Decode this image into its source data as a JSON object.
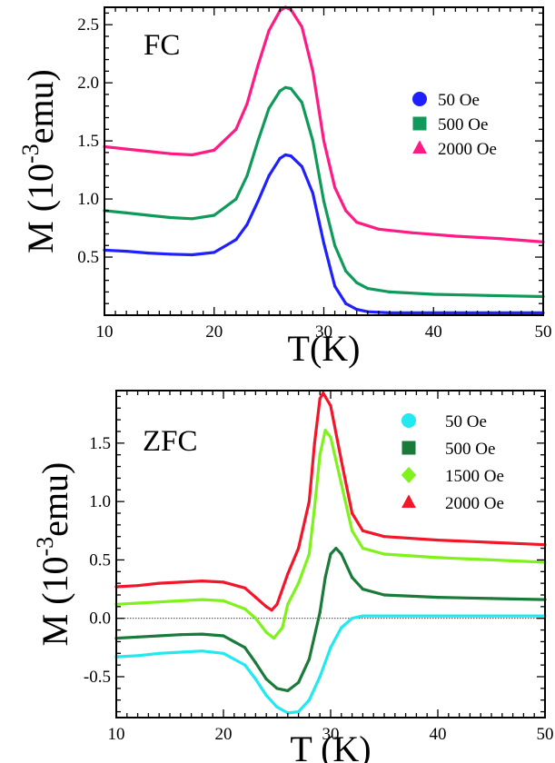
{
  "chart_data": [
    {
      "type": "line",
      "panel_label": "FC",
      "xlabel": "T(K)",
      "ylabel": "M (10",
      "ylabel_exp": "-3",
      "ylabel_unit": "emu)",
      "xlim": [
        10,
        50
      ],
      "ylim": [
        0,
        2.65
      ],
      "x_ticks": [
        10,
        20,
        30,
        40,
        50
      ],
      "x_tick_labels": [
        "10",
        "20",
        "30",
        "40",
        "50"
      ],
      "y_ticks": [
        0.5,
        1.0,
        1.5,
        2.0,
        2.5
      ],
      "y_tick_labels": [
        "0.5",
        "1.0",
        "1.5",
        "2.0",
        "2.5"
      ],
      "zero_line": false,
      "legend_position": "upper-right",
      "series": [
        {
          "name": "50 Oe",
          "color": "#1f1fff",
          "marker": "circle",
          "points": [
            [
              10,
              0.56
            ],
            [
              12,
              0.55
            ],
            [
              14,
              0.535
            ],
            [
              16,
              0.525
            ],
            [
              18,
              0.52
            ],
            [
              20,
              0.54
            ],
            [
              22,
              0.65
            ],
            [
              23,
              0.78
            ],
            [
              24,
              0.98
            ],
            [
              25,
              1.2
            ],
            [
              26,
              1.35
            ],
            [
              26.5,
              1.38
            ],
            [
              27,
              1.37
            ],
            [
              28,
              1.28
            ],
            [
              29,
              1.05
            ],
            [
              30,
              0.62
            ],
            [
              31,
              0.25
            ],
            [
              32,
              0.1
            ],
            [
              33,
              0.05
            ],
            [
              34,
              0.03
            ],
            [
              36,
              0.02
            ],
            [
              40,
              0.02
            ],
            [
              45,
              0.02
            ],
            [
              50,
              0.02
            ]
          ]
        },
        {
          "name": "500 Oe",
          "color": "#0f9a5a",
          "marker": "square",
          "points": [
            [
              10,
              0.9
            ],
            [
              12,
              0.88
            ],
            [
              14,
              0.86
            ],
            [
              16,
              0.84
            ],
            [
              18,
              0.83
            ],
            [
              20,
              0.86
            ],
            [
              22,
              1.0
            ],
            [
              23,
              1.2
            ],
            [
              24,
              1.5
            ],
            [
              25,
              1.78
            ],
            [
              26,
              1.93
            ],
            [
              26.5,
              1.96
            ],
            [
              27,
              1.95
            ],
            [
              28,
              1.83
            ],
            [
              29,
              1.5
            ],
            [
              30,
              0.98
            ],
            [
              31,
              0.6
            ],
            [
              32,
              0.38
            ],
            [
              33,
              0.28
            ],
            [
              34,
              0.23
            ],
            [
              36,
              0.2
            ],
            [
              40,
              0.18
            ],
            [
              45,
              0.17
            ],
            [
              50,
              0.16
            ]
          ]
        },
        {
          "name": "2000 Oe",
          "color": "#ff1a84",
          "marker": "triangle",
          "points": [
            [
              10,
              1.45
            ],
            [
              12,
              1.43
            ],
            [
              14,
              1.41
            ],
            [
              16,
              1.39
            ],
            [
              18,
              1.38
            ],
            [
              20,
              1.42
            ],
            [
              22,
              1.6
            ],
            [
              23,
              1.82
            ],
            [
              24,
              2.15
            ],
            [
              25,
              2.45
            ],
            [
              26,
              2.62
            ],
            [
              26.5,
              2.65
            ],
            [
              27,
              2.63
            ],
            [
              28,
              2.48
            ],
            [
              29,
              2.1
            ],
            [
              30,
              1.5
            ],
            [
              31,
              1.1
            ],
            [
              32,
              0.9
            ],
            [
              33,
              0.8
            ],
            [
              35,
              0.74
            ],
            [
              38,
              0.71
            ],
            [
              42,
              0.68
            ],
            [
              46,
              0.66
            ],
            [
              50,
              0.63
            ]
          ]
        }
      ]
    },
    {
      "type": "line",
      "panel_label": "ZFC",
      "xlabel": "T (K)",
      "ylabel": "M (10",
      "ylabel_exp": "-3",
      "ylabel_unit": "emu)",
      "xlim": [
        10,
        50
      ],
      "ylim": [
        -0.85,
        1.95
      ],
      "x_ticks": [
        10,
        20,
        30,
        40,
        50
      ],
      "x_tick_labels": [
        "10",
        "20",
        "30",
        "40",
        "50"
      ],
      "y_ticks": [
        -0.5,
        0.0,
        0.5,
        1.0,
        1.5
      ],
      "y_tick_labels": [
        "-0.5",
        "0.0",
        "0.5",
        "1.0",
        "1.5"
      ],
      "zero_line": true,
      "legend_position": "upper-right",
      "series": [
        {
          "name": "50 Oe",
          "color": "#22e8f0",
          "marker": "circle",
          "points": [
            [
              10,
              -0.33
            ],
            [
              12,
              -0.32
            ],
            [
              14,
              -0.3
            ],
            [
              16,
              -0.29
            ],
            [
              18,
              -0.28
            ],
            [
              20,
              -0.3
            ],
            [
              22,
              -0.4
            ],
            [
              23,
              -0.52
            ],
            [
              24,
              -0.66
            ],
            [
              25,
              -0.76
            ],
            [
              26,
              -0.81
            ],
            [
              27,
              -0.8
            ],
            [
              28,
              -0.7
            ],
            [
              29,
              -0.5
            ],
            [
              30,
              -0.25
            ],
            [
              31,
              -0.08
            ],
            [
              32,
              0.0
            ],
            [
              33,
              0.02
            ],
            [
              35,
              0.02
            ],
            [
              40,
              0.02
            ],
            [
              45,
              0.02
            ],
            [
              50,
              0.02
            ]
          ]
        },
        {
          "name": "500 Oe",
          "color": "#1a7a3a",
          "marker": "square",
          "points": [
            [
              10,
              -0.17
            ],
            [
              12,
              -0.16
            ],
            [
              14,
              -0.15
            ],
            [
              16,
              -0.14
            ],
            [
              18,
              -0.135
            ],
            [
              20,
              -0.15
            ],
            [
              22,
              -0.25
            ],
            [
              23,
              -0.38
            ],
            [
              24,
              -0.52
            ],
            [
              25,
              -0.6
            ],
            [
              26,
              -0.62
            ],
            [
              27,
              -0.55
            ],
            [
              28,
              -0.35
            ],
            [
              29,
              0.05
            ],
            [
              29.5,
              0.35
            ],
            [
              30,
              0.55
            ],
            [
              30.5,
              0.6
            ],
            [
              31,
              0.55
            ],
            [
              32,
              0.35
            ],
            [
              33,
              0.25
            ],
            [
              35,
              0.2
            ],
            [
              40,
              0.18
            ],
            [
              45,
              0.17
            ],
            [
              50,
              0.16
            ]
          ]
        },
        {
          "name": "1500 Oe",
          "color": "#7ef21a",
          "marker": "diamond",
          "points": [
            [
              10,
              0.12
            ],
            [
              12,
              0.13
            ],
            [
              14,
              0.14
            ],
            [
              16,
              0.15
            ],
            [
              18,
              0.16
            ],
            [
              20,
              0.15
            ],
            [
              22,
              0.08
            ],
            [
              23,
              0.0
            ],
            [
              24,
              -0.12
            ],
            [
              24.7,
              -0.17
            ],
            [
              25.5,
              -0.08
            ],
            [
              26,
              0.12
            ],
            [
              27,
              0.3
            ],
            [
              28,
              0.55
            ],
            [
              28.5,
              0.95
            ],
            [
              29,
              1.4
            ],
            [
              29.5,
              1.61
            ],
            [
              30,
              1.55
            ],
            [
              31,
              1.15
            ],
            [
              32,
              0.75
            ],
            [
              33,
              0.6
            ],
            [
              35,
              0.55
            ],
            [
              40,
              0.52
            ],
            [
              45,
              0.5
            ],
            [
              50,
              0.48
            ]
          ]
        },
        {
          "name": "2000 Oe",
          "color": "#f2162a",
          "marker": "triangle",
          "points": [
            [
              10,
              0.27
            ],
            [
              12,
              0.28
            ],
            [
              14,
              0.3
            ],
            [
              16,
              0.31
            ],
            [
              18,
              0.32
            ],
            [
              20,
              0.31
            ],
            [
              22,
              0.26
            ],
            [
              23,
              0.18
            ],
            [
              24,
              0.1
            ],
            [
              24.5,
              0.07
            ],
            [
              25,
              0.12
            ],
            [
              26,
              0.38
            ],
            [
              27,
              0.6
            ],
            [
              28,
              1.0
            ],
            [
              28.5,
              1.5
            ],
            [
              29,
              1.88
            ],
            [
              29.3,
              1.93
            ],
            [
              30,
              1.82
            ],
            [
              31,
              1.35
            ],
            [
              32,
              0.9
            ],
            [
              33,
              0.75
            ],
            [
              35,
              0.7
            ],
            [
              40,
              0.67
            ],
            [
              45,
              0.65
            ],
            [
              50,
              0.63
            ]
          ]
        }
      ]
    }
  ]
}
